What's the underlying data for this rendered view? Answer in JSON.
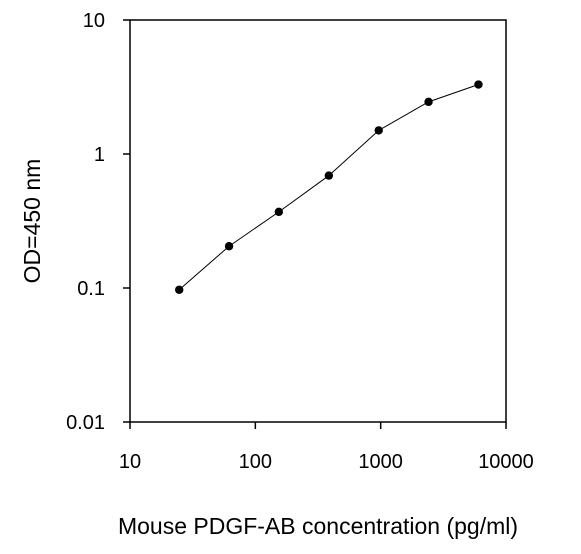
{
  "chart_data": {
    "type": "line",
    "title": "",
    "xlabel": "Mouse PDGF-AB concentration (pg/ml)",
    "ylabel": "OD=450 nm",
    "x_scale": "log",
    "y_scale": "log",
    "xlim": [
      10,
      10000
    ],
    "ylim": [
      0.01,
      10
    ],
    "x_ticks": [
      10,
      100,
      1000,
      10000
    ],
    "x_tick_labels": [
      "10",
      "100",
      "1000",
      "10000"
    ],
    "y_ticks": [
      0.01,
      0.1,
      1,
      10
    ],
    "y_tick_labels": [
      "0.01",
      "0.1",
      "1",
      "10"
    ],
    "grid": false,
    "legend": false,
    "series": [
      {
        "x": [
          24.7,
          61.7,
          154,
          386,
          965,
          2410,
          6030
        ],
        "y": [
          0.097,
          0.205,
          0.37,
          0.69,
          1.5,
          2.45,
          3.3
        ],
        "marker": "circle",
        "color": "#000000"
      }
    ]
  }
}
